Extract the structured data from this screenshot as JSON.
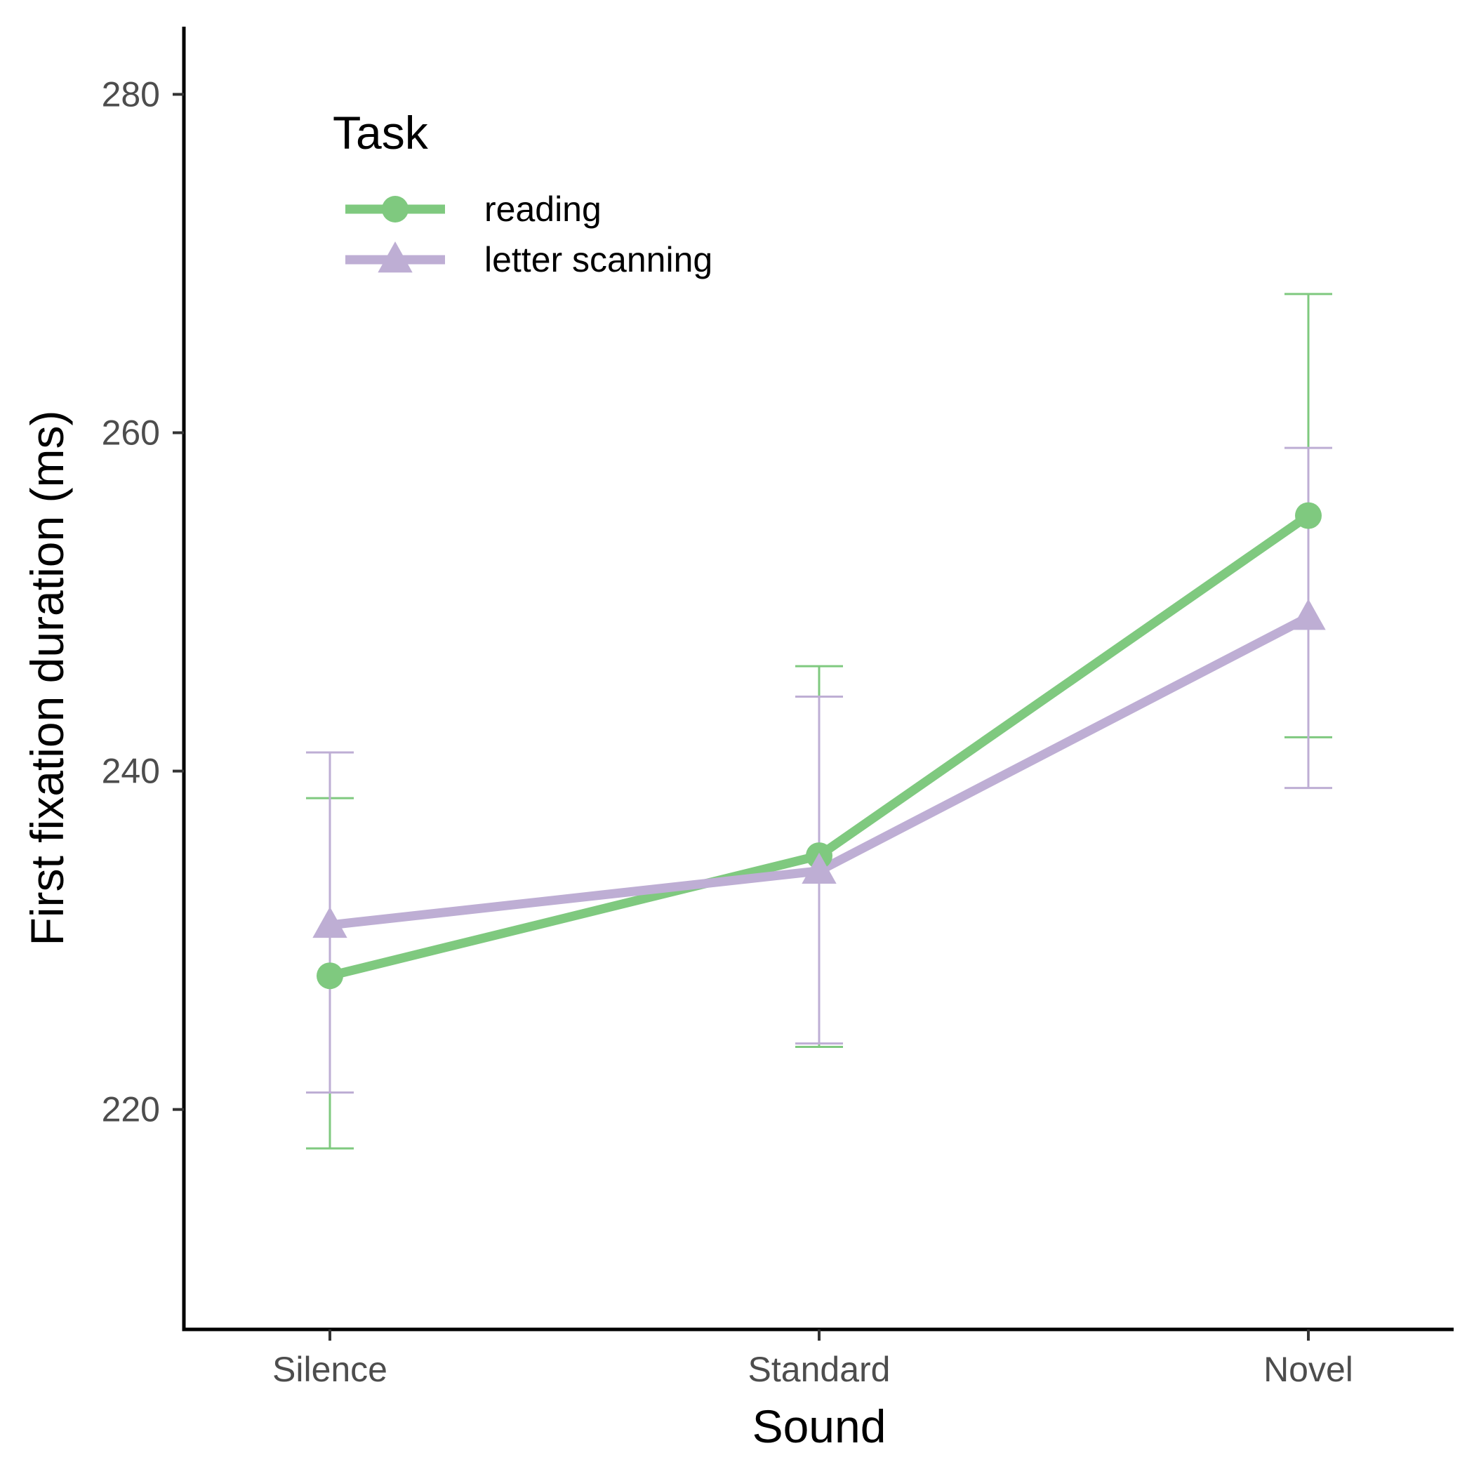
{
  "chart_data": {
    "type": "line",
    "xlabel": "Sound",
    "ylabel": "First fixation duration (ms)",
    "categories": [
      "Silence",
      "Standard",
      "Novel"
    ],
    "ylim": [
      207,
      284
    ],
    "yticks": [
      220,
      240,
      260,
      280
    ],
    "grid": false,
    "legend": {
      "title": "Task",
      "placement": "top-left"
    },
    "series": [
      {
        "name": "reading",
        "color": "#7fc97f",
        "marker": "circle",
        "values": [
          227.9,
          235.0,
          255.1
        ],
        "error_low": [
          217.7,
          223.7,
          242.0
        ],
        "error_high": [
          238.4,
          246.2,
          268.2
        ]
      },
      {
        "name": "letter scanning",
        "color": "#beaed4",
        "marker": "triangle",
        "values": [
          230.9,
          234.1,
          249.1
        ],
        "error_low": [
          221.0,
          223.9,
          239.0
        ],
        "error_high": [
          241.1,
          244.4,
          259.1
        ]
      }
    ]
  }
}
